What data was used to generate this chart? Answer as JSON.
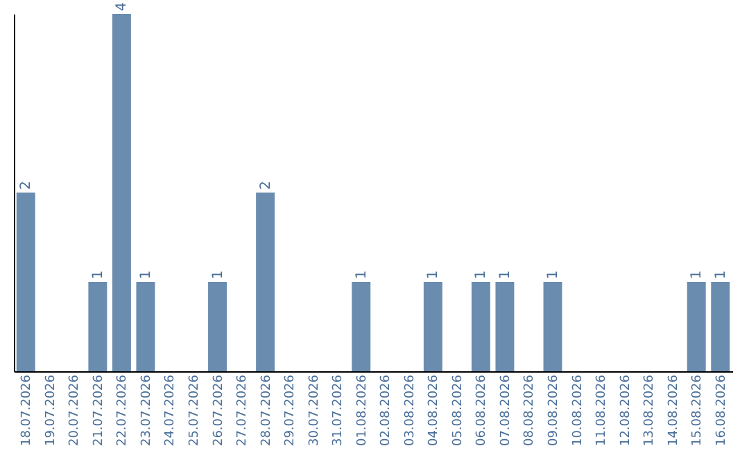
{
  "chart_data": {
    "type": "bar",
    "categories": [
      "18.07.2026",
      "19.07.2026",
      "20.07.2026",
      "21.07.2026",
      "22.07.2026",
      "23.07.2026",
      "24.07.2026",
      "25.07.2026",
      "26.07.2026",
      "27.07.2026",
      "28.07.2026",
      "29.07.2026",
      "30.07.2026",
      "31.07.2026",
      "01.08.2026",
      "02.08.2026",
      "03.08.2026",
      "04.08.2026",
      "05.08.2026",
      "06.08.2026",
      "07.08.2026",
      "08.08.2026",
      "09.08.2026",
      "10.08.2026",
      "11.08.2026",
      "12.08.2026",
      "13.08.2026",
      "14.08.2026",
      "15.08.2026",
      "16.08.2026"
    ],
    "values": [
      2,
      0,
      0,
      1,
      4,
      1,
      0,
      0,
      1,
      0,
      2,
      0,
      0,
      0,
      1,
      0,
      0,
      1,
      0,
      1,
      1,
      0,
      1,
      0,
      0,
      0,
      0,
      0,
      1,
      1
    ],
    "value_labels": [
      "2",
      null,
      null,
      "1",
      "4",
      "1",
      null,
      null,
      "1",
      null,
      "2",
      null,
      null,
      null,
      "1",
      null,
      null,
      "1",
      null,
      "1",
      "1",
      null,
      "1",
      null,
      null,
      null,
      null,
      null,
      "1",
      "1"
    ],
    "color": "#6a8caf",
    "ylim": [
      0,
      4
    ],
    "tick_labels": "x",
    "grid": false
  }
}
